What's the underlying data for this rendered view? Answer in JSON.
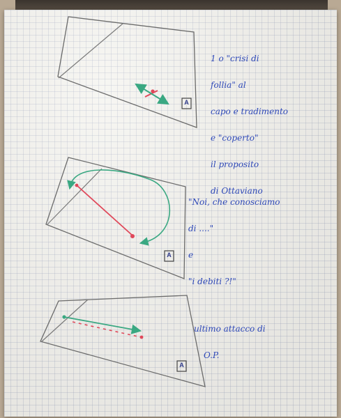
{
  "notes": {
    "top": [
      "1 o \"crisi di",
      "follia\" al",
      "capo e tradimento",
      "e \"coperto\"",
      "il proposito",
      "di Ottaviano"
    ],
    "middle": [
      "\"Noi, che conosciamo",
      "di ....\"",
      "e",
      "\"i debiti ?!\""
    ],
    "bottom": [
      "ultimo attacco di",
      "O.P."
    ]
  },
  "markers": {
    "top": "A",
    "middle": "A",
    "bottom": "A"
  },
  "colors": {
    "ink_blue": "#2f49b8",
    "pencil": "#6b6b6b",
    "red": "#e0485a",
    "green": "#3aa882"
  }
}
